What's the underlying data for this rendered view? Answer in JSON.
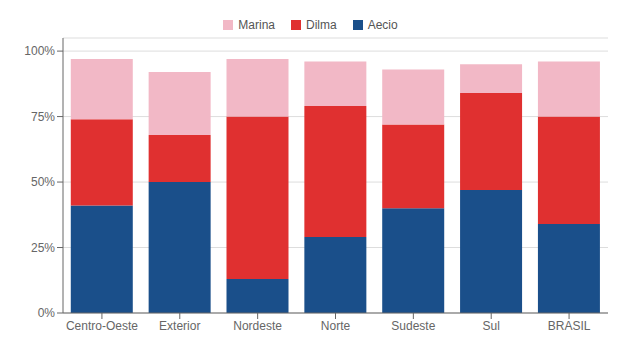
{
  "chart_data": {
    "type": "bar",
    "stacked": true,
    "categories": [
      "Centro-Oeste",
      "Exterior",
      "Nordeste",
      "Norte",
      "Sudeste",
      "Sul",
      "BRASIL"
    ],
    "series": [
      {
        "name": "Aecio",
        "color": "#1a4f8a",
        "values": [
          41,
          50,
          13,
          29,
          40,
          47,
          34
        ]
      },
      {
        "name": "Dilma",
        "color": "#e03030",
        "values": [
          33,
          18,
          62,
          50,
          32,
          37,
          41
        ]
      },
      {
        "name": "Marina",
        "color": "#f2b8c6",
        "values": [
          23,
          24,
          22,
          17,
          21,
          11,
          21
        ]
      }
    ],
    "ylim": [
      0,
      105
    ],
    "yticks": [
      {
        "value": 0,
        "label": "0%"
      },
      {
        "value": 25,
        "label": "25%"
      },
      {
        "value": 50,
        "label": "50%"
      },
      {
        "value": 75,
        "label": "75%"
      },
      {
        "value": 100,
        "label": "100%"
      }
    ],
    "grid": true,
    "legend": "top"
  }
}
